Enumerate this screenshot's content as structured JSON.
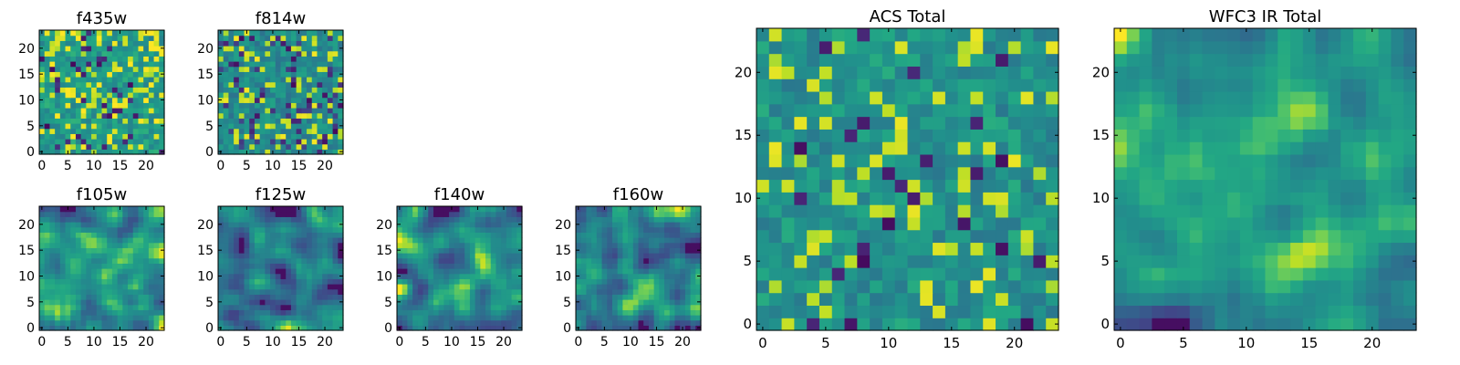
{
  "figure": {
    "layout": "6 small pixel-map panels + 2 large pixel-map panels",
    "colormap": "viridis"
  },
  "chart_data": [
    {
      "id": "f435w",
      "type": "heatmap",
      "title": "f435w",
      "grid": [
        24,
        24
      ],
      "texture": "noise",
      "seed": 11,
      "xlim": [
        0,
        24
      ],
      "ylim": [
        0,
        24
      ],
      "xticks": [
        0,
        5,
        10,
        15,
        20
      ],
      "yticks": [
        0,
        5,
        10,
        15,
        20
      ],
      "xtick_labels": [
        "0",
        "5",
        "10",
        "15",
        "20"
      ],
      "ytick_labels": [
        "0",
        "5",
        "10",
        "15",
        "20"
      ],
      "dark_fraction": 0.06,
      "bright_fraction": 0.22,
      "base_level": 0.7
    },
    {
      "id": "f814w",
      "type": "heatmap",
      "title": "f814w",
      "grid": [
        24,
        24
      ],
      "texture": "noise",
      "seed": 23,
      "xlim": [
        0,
        24
      ],
      "ylim": [
        0,
        24
      ],
      "xticks": [
        0,
        5,
        10,
        15,
        20
      ],
      "yticks": [
        0,
        5,
        10,
        15,
        20
      ],
      "xtick_labels": [
        "0",
        "5",
        "10",
        "15",
        "20"
      ],
      "ytick_labels": [
        "0",
        "5",
        "10",
        "15",
        "20"
      ],
      "dark_fraction": 0.08,
      "bright_fraction": 0.18,
      "base_level": 0.62
    },
    {
      "id": "f105w",
      "type": "heatmap",
      "title": "f105w",
      "grid": [
        24,
        24
      ],
      "texture": "smooth",
      "seed": 37,
      "xlim": [
        0,
        24
      ],
      "ylim": [
        0,
        24
      ],
      "xticks": [
        0,
        5,
        10,
        15,
        20
      ],
      "yticks": [
        0,
        5,
        10,
        15,
        20
      ],
      "xtick_labels": [
        "0",
        "5",
        "10",
        "15",
        "20"
      ],
      "ytick_labels": [
        "0",
        "5",
        "10",
        "15",
        "20"
      ],
      "dark_fraction": 0.05,
      "bright_fraction": 0.1,
      "base_level": 0.58
    },
    {
      "id": "f125w",
      "type": "heatmap",
      "title": "f125w",
      "grid": [
        24,
        24
      ],
      "texture": "smooth",
      "seed": 41,
      "xlim": [
        0,
        24
      ],
      "ylim": [
        0,
        24
      ],
      "xticks": [
        0,
        5,
        10,
        15,
        20
      ],
      "yticks": [
        0,
        5,
        10,
        15,
        20
      ],
      "xtick_labels": [
        "0",
        "5",
        "10",
        "15",
        "20"
      ],
      "ytick_labels": [
        "0",
        "5",
        "10",
        "15",
        "20"
      ],
      "dark_fraction": 0.06,
      "bright_fraction": 0.08,
      "base_level": 0.56
    },
    {
      "id": "f140w",
      "type": "heatmap",
      "title": "f140w",
      "grid": [
        24,
        24
      ],
      "texture": "smooth",
      "seed": 53,
      "xlim": [
        0,
        24
      ],
      "ylim": [
        0,
        24
      ],
      "xticks": [
        0,
        5,
        10,
        15,
        20
      ],
      "yticks": [
        0,
        5,
        10,
        15,
        20
      ],
      "xtick_labels": [
        "0",
        "5",
        "10",
        "15",
        "20"
      ],
      "ytick_labels": [
        "0",
        "5",
        "10",
        "15",
        "20"
      ],
      "dark_fraction": 0.04,
      "bright_fraction": 0.1,
      "base_level": 0.6
    },
    {
      "id": "f160w",
      "type": "heatmap",
      "title": "f160w",
      "grid": [
        24,
        24
      ],
      "texture": "smooth",
      "seed": 67,
      "xlim": [
        0,
        24
      ],
      "ylim": [
        0,
        24
      ],
      "xticks": [
        0,
        5,
        10,
        15,
        20
      ],
      "yticks": [
        0,
        5,
        10,
        15,
        20
      ],
      "xtick_labels": [
        "0",
        "5",
        "10",
        "15",
        "20"
      ],
      "ytick_labels": [
        "0",
        "5",
        "10",
        "15",
        "20"
      ],
      "dark_fraction": 0.05,
      "bright_fraction": 0.08,
      "base_level": 0.58
    },
    {
      "id": "acs_total",
      "type": "heatmap",
      "title": "ACS Total",
      "grid": [
        24,
        24
      ],
      "texture": "noise",
      "seed": 79,
      "xlim": [
        0,
        24
      ],
      "ylim": [
        0,
        24
      ],
      "xticks": [
        0,
        5,
        10,
        15,
        20
      ],
      "yticks": [
        0,
        5,
        10,
        15,
        20
      ],
      "xtick_labels": [
        "0",
        "5",
        "10",
        "15",
        "20"
      ],
      "ytick_labels": [
        "0",
        "5",
        "10",
        "15",
        "20"
      ],
      "dark_fraction": 0.04,
      "bright_fraction": 0.16,
      "base_level": 0.66
    },
    {
      "id": "wfc3_ir_total",
      "type": "heatmap",
      "title": "WFC3 IR Total",
      "grid": [
        24,
        24
      ],
      "texture": "smooth",
      "seed": 97,
      "xlim": [
        0,
        24
      ],
      "ylim": [
        0,
        24
      ],
      "xticks": [
        0,
        5,
        10,
        15,
        20
      ],
      "yticks": [
        0,
        5,
        10,
        15,
        20
      ],
      "xtick_labels": [
        "0",
        "5",
        "10",
        "15",
        "20"
      ],
      "ytick_labels": [
        "0",
        "5",
        "10",
        "15",
        "20"
      ],
      "dark_fraction": 0.03,
      "bright_fraction": 0.08,
      "base_level": 0.6
    }
  ]
}
